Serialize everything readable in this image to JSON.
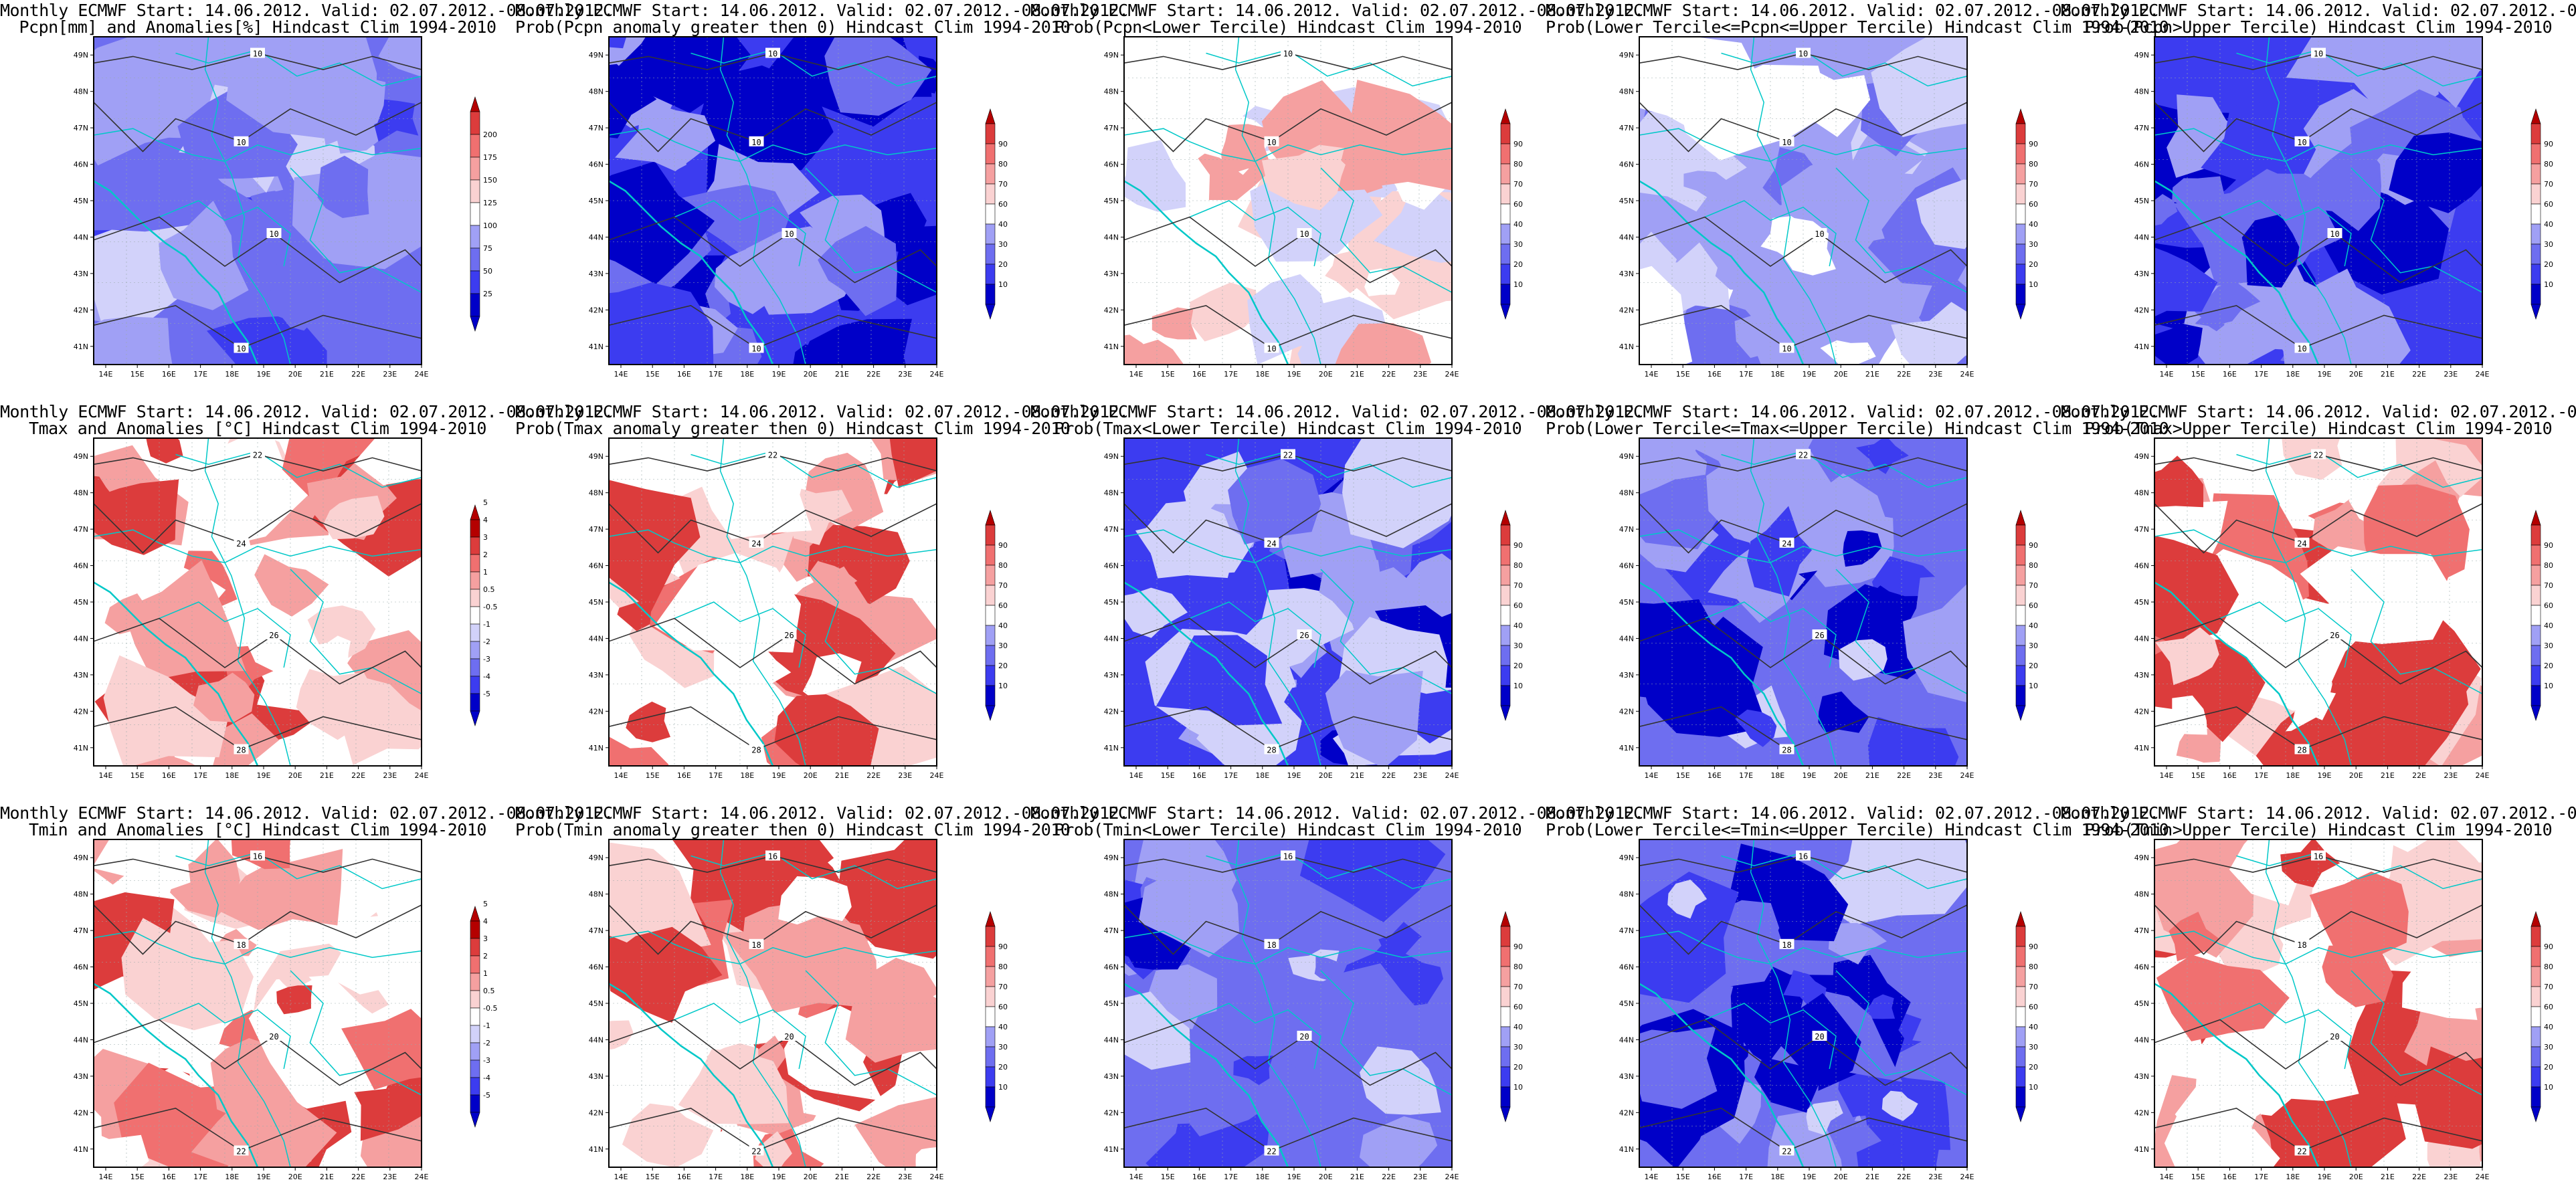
{
  "common": {
    "title_line1": "Monthly ECMWF Start: 14.06.2012. Valid: 02.07.2012.-08.07.2012.",
    "lat_ticks": [
      "41N",
      "42N",
      "43N",
      "44N",
      "45N",
      "46N",
      "47N",
      "48N",
      "49N"
    ],
    "lon_ticks": [
      "14E",
      "15E",
      "16E",
      "17E",
      "18E",
      "19E",
      "20E",
      "21E",
      "22E",
      "23E",
      "24E"
    ]
  },
  "colors": {
    "blue_dark": "#0000c8",
    "blue": "#3c3cf0",
    "blue_mid": "#6e6ef0",
    "blue_light": "#a0a0f5",
    "blue_pale": "#d2d2fa",
    "white": "#ffffff",
    "red_pale": "#fad2d2",
    "red_light": "#f5a0a0",
    "red_mid": "#f07070",
    "red": "#dc3c3c",
    "red_dark": "#b40000",
    "coast": "#00c8c8",
    "contour": "#333333"
  },
  "colorbars": {
    "pcpn": [
      "25",
      "50",
      "75",
      "100",
      "125",
      "150",
      "175",
      "200"
    ],
    "prob": [
      "10",
      "20",
      "30",
      "40",
      "60",
      "70",
      "80",
      "90"
    ],
    "temp": [
      "-5",
      "-4",
      "-3",
      "-2",
      "-1",
      "-0.5",
      "0.5",
      "1",
      "2",
      "3",
      "4",
      "5"
    ]
  },
  "rows": [
    {
      "panels": [
        {
          "title2": "Pcpn[mm] and Anomalies[%] Hindcast Clim 1994-2010",
          "bar": "pcpn",
          "base": "blue_mid",
          "contours": [
            "10",
            "10",
            "10",
            "10"
          ]
        },
        {
          "title2": "Prob(Pcpn anomaly greater then 0) Hindcast Clim 1994-2010",
          "bar": "prob",
          "base": "blue",
          "contours": [
            "10",
            "10",
            "10",
            "10"
          ]
        },
        {
          "title2": "Prob(Pcpn<Lower Tercile) Hindcast Clim 1994-2010",
          "bar": "prob",
          "base": "white",
          "contours": [
            "10",
            "10",
            "10",
            "10"
          ]
        },
        {
          "title2": "Prob(Lower Tercile<=Pcpn<=Upper Tercile) Hindcast Clim 1994-2010",
          "bar": "prob",
          "base": "blue_light",
          "contours": [
            "10",
            "10",
            "10",
            "10"
          ]
        },
        {
          "title2": "Prob(Pcpn>Upper Tercile) Hindcast Clim 1994-2010",
          "bar": "prob",
          "base": "blue",
          "contours": [
            "10",
            "10",
            "10",
            "10"
          ]
        }
      ]
    },
    {
      "panels": [
        {
          "title2": "Tmax and Anomalies [°C] Hindcast Clim 1994-2010",
          "bar": "temp",
          "base": "white",
          "contours": [
            "22",
            "24",
            "26",
            "28"
          ]
        },
        {
          "title2": "Prob(Tmax anomaly greater then 0) Hindcast Clim 1994-2010",
          "bar": "prob",
          "base": "white",
          "contours": [
            "22",
            "24",
            "26",
            "28"
          ]
        },
        {
          "title2": "Prob(Tmax<Lower Tercile) Hindcast Clim 1994-2010",
          "bar": "prob",
          "base": "blue",
          "contours": [
            "22",
            "24",
            "26",
            "28"
          ]
        },
        {
          "title2": "Prob(Lower Tercile<=Tmax<=Upper Tercile) Hindcast Clim 1994-2010",
          "bar": "prob",
          "base": "blue_mid",
          "contours": [
            "22",
            "24",
            "26",
            "28"
          ]
        },
        {
          "title2": "Prob(Tmax>Upper Tercile) Hindcast Clim 1994-2010",
          "bar": "prob",
          "base": "white",
          "contours": [
            "22",
            "24",
            "26",
            "28"
          ]
        }
      ]
    },
    {
      "panels": [
        {
          "title2": "Tmin and Anomalies [°C] Hindcast Clim 1994-2010",
          "bar": "temp",
          "base": "white",
          "contours": [
            "16",
            "18",
            "20",
            "22"
          ]
        },
        {
          "title2": "Prob(Tmin anomaly greater then 0) Hindcast Clim 1994-2010",
          "bar": "prob",
          "base": "white",
          "contours": [
            "16",
            "18",
            "20",
            "22"
          ]
        },
        {
          "title2": "Prob(Tmin<Lower Tercile) Hindcast Clim 1994-2010",
          "bar": "prob",
          "base": "blue_mid",
          "contours": [
            "16",
            "18",
            "20",
            "22"
          ]
        },
        {
          "title2": "Prob(Lower Tercile<=Tmin<=Upper Tercile) Hindcast Clim 1994-2010",
          "bar": "prob",
          "base": "blue_mid",
          "contours": [
            "16",
            "18",
            "20",
            "22"
          ]
        },
        {
          "title2": "Prob(Tmin>Upper Tercile) Hindcast Clim 1994-2010",
          "bar": "prob",
          "base": "white",
          "contours": [
            "16",
            "18",
            "20",
            "22"
          ]
        }
      ]
    }
  ]
}
